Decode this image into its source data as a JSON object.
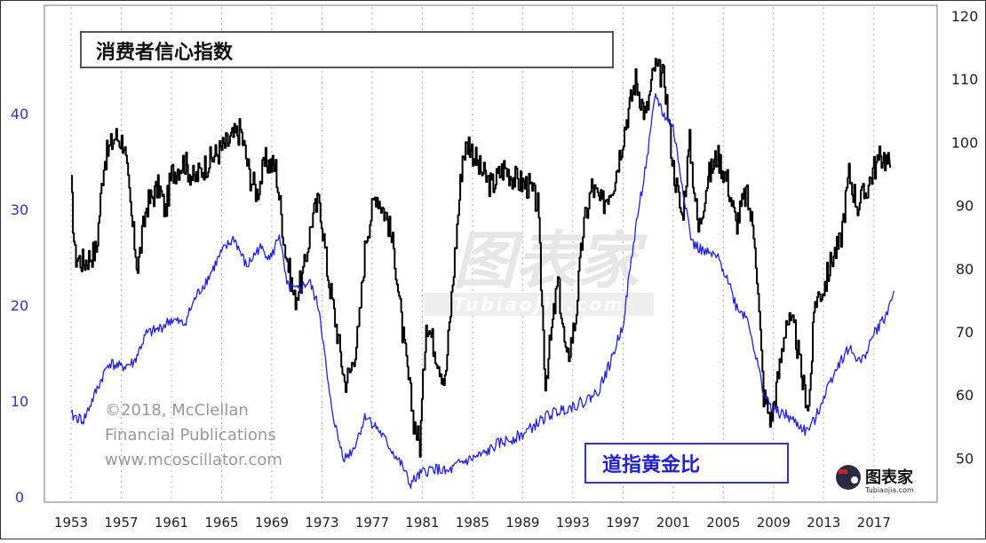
{
  "chart_data": {
    "type": "line",
    "x_ticks": [
      "1953",
      "1957",
      "1961",
      "1965",
      "1969",
      "1973",
      "1977",
      "1981",
      "1985",
      "1989",
      "1993",
      "1997",
      "2001",
      "2005",
      "2009",
      "2013",
      "2017"
    ],
    "y_left": {
      "ticks": [
        0,
        10,
        20,
        30,
        40
      ],
      "range": [
        0,
        50
      ]
    },
    "y_right": {
      "ticks": [
        50,
        60,
        70,
        80,
        90,
        100,
        110,
        120
      ],
      "range": [
        45,
        120
      ]
    },
    "series": [
      {
        "name": "消费者信心指数",
        "axis": "right",
        "color": "#000000",
        "points": [
          [
            1953.0,
            93
          ],
          [
            1953.3,
            82
          ],
          [
            1954.0,
            81
          ],
          [
            1955.0,
            83
          ],
          [
            1955.6,
            97
          ],
          [
            1956.5,
            101
          ],
          [
            1957.2,
            100
          ],
          [
            1957.8,
            88
          ],
          [
            1958.3,
            80
          ],
          [
            1959.0,
            90
          ],
          [
            1960.0,
            93
          ],
          [
            1960.5,
            89
          ],
          [
            1961.0,
            95
          ],
          [
            1962.0,
            97
          ],
          [
            1962.8,
            94
          ],
          [
            1963.5,
            96
          ],
          [
            1964.5,
            98
          ],
          [
            1965.5,
            100
          ],
          [
            1966.5,
            102
          ],
          [
            1967.2,
            95
          ],
          [
            1967.8,
            92
          ],
          [
            1968.5,
            97
          ],
          [
            1969.3,
            96
          ],
          [
            1970.0,
            84
          ],
          [
            1970.8,
            75
          ],
          [
            1971.5,
            79
          ],
          [
            1972.2,
            88
          ],
          [
            1972.8,
            91
          ],
          [
            1973.4,
            80
          ],
          [
            1974.2,
            70
          ],
          [
            1974.8,
            62
          ],
          [
            1975.3,
            64
          ],
          [
            1975.9,
            70
          ],
          [
            1976.5,
            85
          ],
          [
            1977.3,
            92
          ],
          [
            1978.2,
            88
          ],
          [
            1978.8,
            82
          ],
          [
            1979.4,
            70
          ],
          [
            1980.3,
            56
          ],
          [
            1980.8,
            52
          ],
          [
            1981.3,
            72
          ],
          [
            1982.2,
            66
          ],
          [
            1982.8,
            62
          ],
          [
            1983.5,
            80
          ],
          [
            1984.2,
            98
          ],
          [
            1984.7,
            100
          ],
          [
            1985.5,
            96
          ],
          [
            1986.5,
            93
          ],
          [
            1987.5,
            96
          ],
          [
            1988.5,
            94
          ],
          [
            1989.5,
            93
          ],
          [
            1990.2,
            90
          ],
          [
            1990.8,
            62
          ],
          [
            1991.3,
            70
          ],
          [
            1991.8,
            78
          ],
          [
            1992.5,
            65
          ],
          [
            1993.2,
            72
          ],
          [
            1993.8,
            86
          ],
          [
            1994.5,
            93
          ],
          [
            1995.3,
            90
          ],
          [
            1996.3,
            94
          ],
          [
            1997.2,
            103
          ],
          [
            1998.0,
            110
          ],
          [
            1998.8,
            104
          ],
          [
            1999.5,
            112
          ],
          [
            2000.3,
            110
          ],
          [
            2001.0,
            96
          ],
          [
            2001.7,
            88
          ],
          [
            2002.3,
            100
          ],
          [
            2003.0,
            86
          ],
          [
            2003.7,
            94
          ],
          [
            2004.5,
            98
          ],
          [
            2005.3,
            94
          ],
          [
            2006.0,
            87
          ],
          [
            2006.8,
            92
          ],
          [
            2007.5,
            85
          ],
          [
            2008.2,
            60
          ],
          [
            2008.8,
            56
          ],
          [
            2009.3,
            62
          ],
          [
            2010.0,
            72
          ],
          [
            2010.7,
            70
          ],
          [
            2011.3,
            62
          ],
          [
            2011.8,
            58
          ],
          [
            2012.3,
            75
          ],
          [
            2013.0,
            77
          ],
          [
            2013.7,
            82
          ],
          [
            2014.3,
            84
          ],
          [
            2015.0,
            95
          ],
          [
            2015.7,
            90
          ],
          [
            2016.3,
            92
          ],
          [
            2017.0,
            96
          ],
          [
            2017.7,
            98
          ],
          [
            2018.3,
            96
          ]
        ]
      },
      {
        "name": "道指黄金比",
        "axis": "left",
        "color": "#2222dd",
        "points": [
          [
            1953.0,
            8.5
          ],
          [
            1954.0,
            8.0
          ],
          [
            1955.0,
            11.0
          ],
          [
            1956.0,
            14.0
          ],
          [
            1957.0,
            13.5
          ],
          [
            1958.0,
            14.0
          ],
          [
            1959.0,
            17.0
          ],
          [
            1960.0,
            17.5
          ],
          [
            1961.0,
            18.5
          ],
          [
            1962.0,
            18.0
          ],
          [
            1963.0,
            21.0
          ],
          [
            1964.0,
            23.0
          ],
          [
            1965.0,
            25.5
          ],
          [
            1966.0,
            27.0
          ],
          [
            1967.0,
            24.0
          ],
          [
            1968.0,
            26.0
          ],
          [
            1969.0,
            25.0
          ],
          [
            1969.6,
            27.5
          ],
          [
            1970.2,
            22.0
          ],
          [
            1971.0,
            21.5
          ],
          [
            1972.0,
            22.5
          ],
          [
            1972.8,
            19.5
          ],
          [
            1973.6,
            10.5
          ],
          [
            1974.3,
            6.0
          ],
          [
            1974.8,
            4.0
          ],
          [
            1975.5,
            5.0
          ],
          [
            1976.5,
            8.5
          ],
          [
            1977.5,
            7.0
          ],
          [
            1978.5,
            5.0
          ],
          [
            1979.5,
            3.0
          ],
          [
            1980.0,
            1.3
          ],
          [
            1981.0,
            2.5
          ],
          [
            1982.0,
            3.0
          ],
          [
            1983.0,
            2.5
          ],
          [
            1984.0,
            3.5
          ],
          [
            1985.0,
            4.0
          ],
          [
            1986.0,
            4.5
          ],
          [
            1987.0,
            5.5
          ],
          [
            1988.0,
            6.0
          ],
          [
            1989.0,
            6.5
          ],
          [
            1990.0,
            7.5
          ],
          [
            1991.0,
            8.5
          ],
          [
            1992.0,
            9.0
          ],
          [
            1993.0,
            9.5
          ],
          [
            1994.0,
            10.0
          ],
          [
            1995.0,
            11.0
          ],
          [
            1996.0,
            14.0
          ],
          [
            1997.0,
            18.0
          ],
          [
            1998.0,
            28.0
          ],
          [
            1999.0,
            36.0
          ],
          [
            1999.6,
            42.0
          ],
          [
            2000.2,
            40.0
          ],
          [
            2001.0,
            38.5
          ],
          [
            2001.8,
            32.0
          ],
          [
            2002.5,
            26.5
          ],
          [
            2003.5,
            25.5
          ],
          [
            2004.5,
            25.0
          ],
          [
            2005.3,
            23.0
          ],
          [
            2006.0,
            20.0
          ],
          [
            2007.0,
            18.5
          ],
          [
            2007.6,
            14.5
          ],
          [
            2008.3,
            10.5
          ],
          [
            2009.0,
            9.0
          ],
          [
            2010.0,
            8.5
          ],
          [
            2011.0,
            7.5
          ],
          [
            2011.6,
            6.8
          ],
          [
            2012.3,
            8.0
          ],
          [
            2013.0,
            10.5
          ],
          [
            2014.0,
            13.5
          ],
          [
            2015.0,
            15.5
          ],
          [
            2016.0,
            14.0
          ],
          [
            2017.0,
            17.0
          ],
          [
            2018.0,
            19.0
          ],
          [
            2018.6,
            21.5
          ]
        ]
      }
    ],
    "annotations": [
      "©2018, McClellan",
      "Financial Publications",
      "www.mcoscillator.com"
    ],
    "grid": "vertical dotted",
    "legend": [
      "top-left box (black series)",
      "bottom-right box (blue series)"
    ]
  },
  "watermark": {
    "text": "图表家",
    "sub": "Tubiaojia.com"
  },
  "logo": {
    "text": "图表家",
    "sub": "Tubiaojia.com"
  }
}
